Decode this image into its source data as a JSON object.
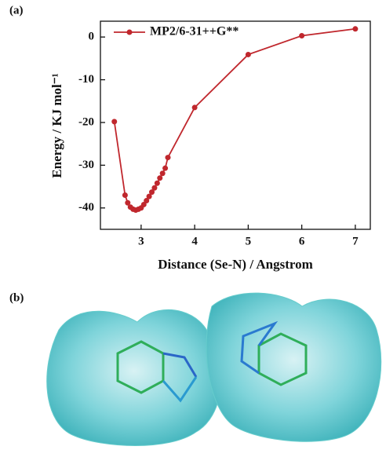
{
  "panel_labels": [
    "(a)",
    "(b)"
  ],
  "chart_data": {
    "type": "line",
    "x_label": "Distance (Se-N) / Angstrom",
    "y_label": "Energy / KJ mol⁻¹",
    "x": [
      2.5,
      2.7,
      2.75,
      2.8,
      2.85,
      2.9,
      2.95,
      3.0,
      3.05,
      3.1,
      3.15,
      3.2,
      3.25,
      3.3,
      3.35,
      3.4,
      3.45,
      3.5,
      4,
      5,
      6,
      7
    ],
    "series": [
      {
        "name": "MP2/6-31++G**",
        "color": "#c0272d",
        "values": [
          -19.8,
          -37,
          -38.8,
          -39.8,
          -40.3,
          -40.5,
          -40.3,
          -40,
          -39.2,
          -38.3,
          -37.3,
          -36.3,
          -35.3,
          -34.2,
          -33,
          -31.9,
          -30.7,
          -28.2,
          -16.5,
          -4.1,
          0.3,
          1.9
        ]
      }
    ],
    "xlim": [
      2.24,
      7.28
    ],
    "xticks": [
      3,
      4,
      5,
      6,
      7
    ],
    "ylim": [
      -45,
      3.7
    ],
    "yticks": [
      0,
      -10,
      -20,
      -30,
      -40
    ],
    "legend": "upper left"
  }
}
